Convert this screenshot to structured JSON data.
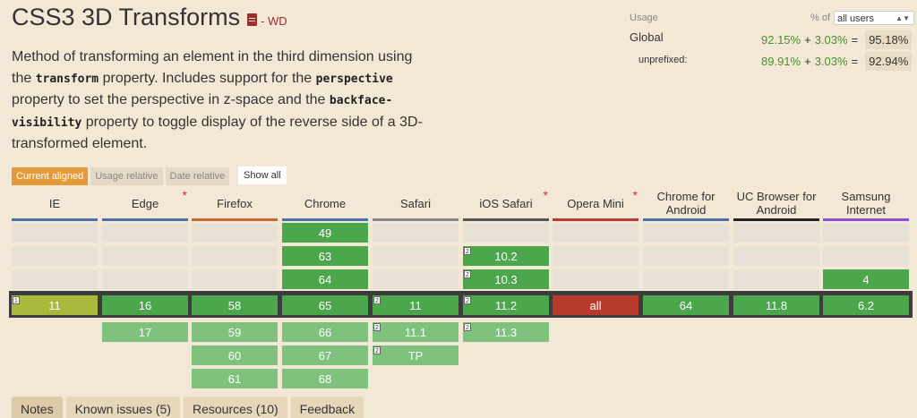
{
  "title": "CSS3 3D Transforms",
  "status": "- WD",
  "desc": {
    "t1": "Method of transforming an element in the third dimension using the ",
    "c1": "transform",
    "t2": " property. Includes support for the ",
    "c2": "perspective",
    "t3": " property to set the perspective in z-space and the ",
    "c3": "backface-visibility",
    "t4": " property to toggle display of the reverse side of a 3D-transformed element."
  },
  "usage": {
    "label": "Usage",
    "pct_of": "% of",
    "select_value": "all users",
    "global_label": "Global",
    "global": {
      "a": "92.15%",
      "plus": "+",
      "b": "3.03%",
      "eq": "=",
      "total": "95.18%"
    },
    "unprefixed_label": "unprefixed:",
    "unprefixed": {
      "a": "89.91%",
      "plus": "+",
      "b": "3.03%",
      "eq": "=",
      "total": "92.94%"
    }
  },
  "filters": [
    "Current aligned",
    "Usage relative",
    "Date relative"
  ],
  "show_all": "Show all",
  "browsers": [
    {
      "name": "IE",
      "color": "#4a6fa5",
      "ast": "",
      "current": {
        "v": "11",
        "s": "pa",
        "note": "1"
      },
      "above": [],
      "below": []
    },
    {
      "name": "Edge",
      "color": "#4a6fa5",
      "ast": "*",
      "current": {
        "v": "16",
        "s": "y"
      },
      "above": [],
      "below": [
        {
          "v": "17",
          "s": "yl"
        }
      ]
    },
    {
      "name": "Firefox",
      "color": "#c46a2e",
      "ast": "",
      "current": {
        "v": "58",
        "s": "y"
      },
      "above": [],
      "below": [
        {
          "v": "59",
          "s": "yl"
        },
        {
          "v": "60",
          "s": "yl"
        },
        {
          "v": "61",
          "s": "yl"
        }
      ]
    },
    {
      "name": "Chrome",
      "color": "#4a6fa5",
      "ast": "",
      "current": {
        "v": "65",
        "s": "y"
      },
      "above": [
        {
          "v": "49",
          "s": "y"
        },
        {
          "v": "63",
          "s": "y"
        },
        {
          "v": "64",
          "s": "y"
        }
      ],
      "below": [
        {
          "v": "66",
          "s": "yl"
        },
        {
          "v": "67",
          "s": "yl"
        },
        {
          "v": "68",
          "s": "yl"
        }
      ]
    },
    {
      "name": "Safari",
      "color": "#888888",
      "ast": "",
      "current": {
        "v": "11",
        "s": "y",
        "note": "2"
      },
      "above": [],
      "below": [
        {
          "v": "11.1",
          "s": "yl",
          "note": "2"
        },
        {
          "v": "TP",
          "s": "yl",
          "note": "2"
        }
      ]
    },
    {
      "name": "iOS Safari",
      "color": "#555555",
      "ast": "*",
      "current": {
        "v": "11.2",
        "s": "y",
        "note": "2"
      },
      "above": [
        {
          "v": "10.2",
          "s": "y",
          "note": "2"
        },
        {
          "v": "10.3",
          "s": "y",
          "note": "2"
        }
      ],
      "below": [
        {
          "v": "11.3",
          "s": "yl",
          "note": "2"
        }
      ]
    },
    {
      "name": "Opera Mini",
      "color": "#b73a2c",
      "ast": "*",
      "current": {
        "v": "all",
        "s": "n"
      },
      "above": [],
      "below": []
    },
    {
      "name": "Chrome for Android",
      "color": "#4a6fa5",
      "ast": "",
      "current": {
        "v": "64",
        "s": "y"
      },
      "above": [],
      "below": []
    },
    {
      "name": "UC Browser for Android",
      "color": "#222222",
      "ast": "",
      "current": {
        "v": "11.8",
        "s": "y"
      },
      "above": [],
      "below": []
    },
    {
      "name": "Samsung Internet",
      "color": "#8a4fd6",
      "ast": "",
      "current": {
        "v": "6.2",
        "s": "y"
      },
      "above": [
        {
          "v": "4",
          "s": "y"
        }
      ],
      "below": []
    }
  ],
  "tabs": [
    "Notes",
    "Known issues (5)",
    "Resources (10)",
    "Feedback"
  ]
}
